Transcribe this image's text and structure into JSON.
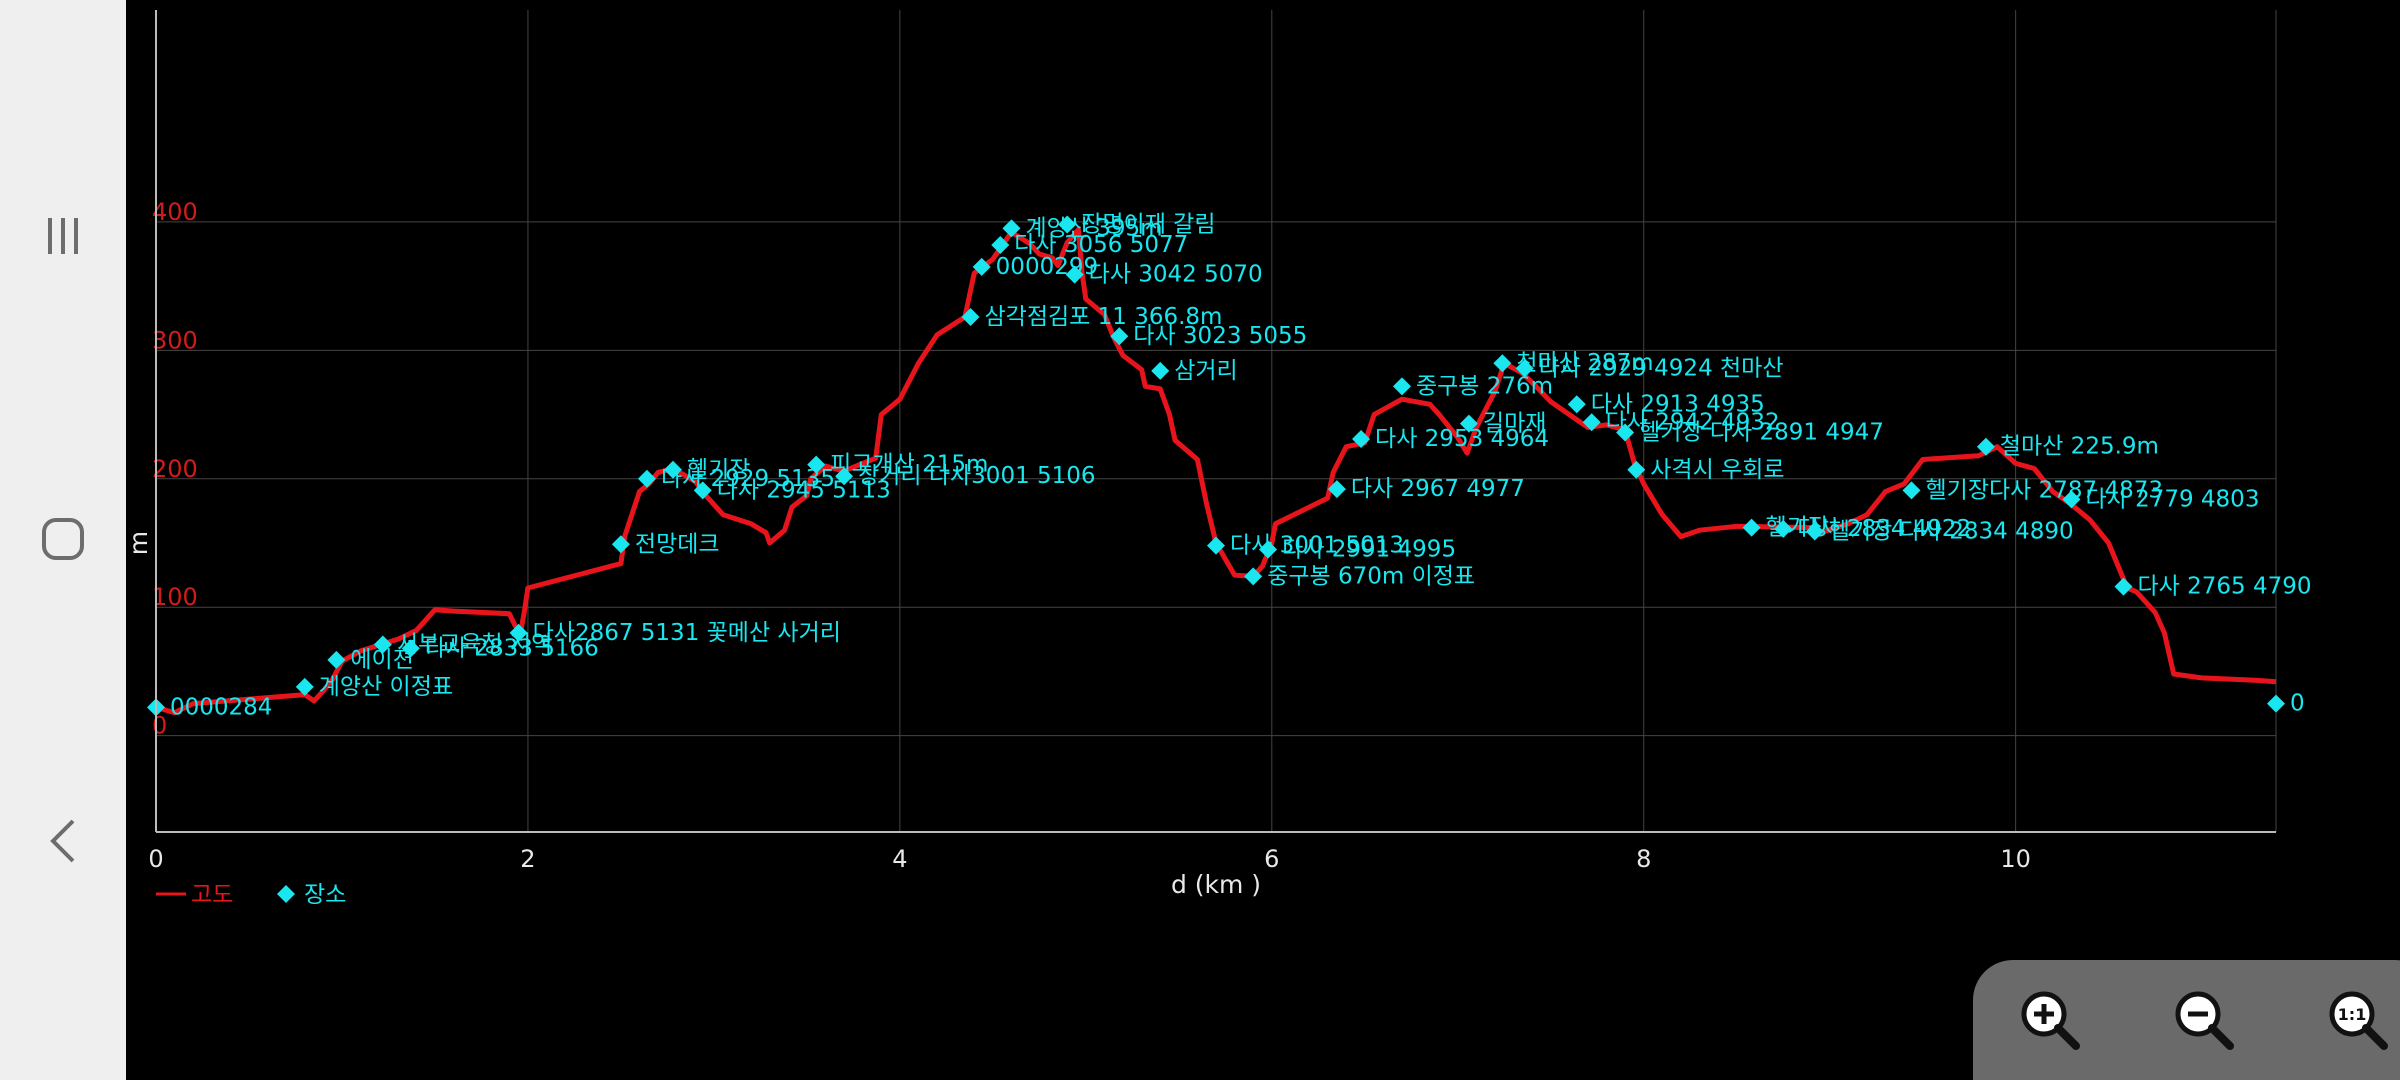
{
  "colors": {
    "elevation_line": "#e8141c",
    "place_marker": "#19e6ef",
    "grid": "#444444",
    "axis_label": "#e8e8e8",
    "y_tick": "#d21c1c",
    "background": "#000000",
    "nav_bg": "#efefef",
    "zoom_panel": "#6a6a6a"
  },
  "nav": {
    "recent_icon": "recent-apps-icon",
    "home_icon": "home-icon",
    "back_icon": "back-icon"
  },
  "zoom": {
    "in_icon": "zoom-in-icon",
    "out_icon": "zoom-out-icon",
    "reset_label": "1:1"
  },
  "legend": {
    "line_label": "고도",
    "marker_label": "장소"
  },
  "chart_data": {
    "type": "line",
    "xlabel": "d (km )",
    "ylabel": "m",
    "xlim": [
      0,
      11.4
    ],
    "ylim": [
      -75,
      565
    ],
    "x_ticks": [
      0,
      2,
      4,
      6,
      8,
      10
    ],
    "y_ticks": [
      0,
      100,
      200,
      300,
      400
    ],
    "grid": true,
    "legend_position": "bottom-left",
    "series": [
      {
        "name": "고도",
        "points": [
          [
            0,
            22
          ],
          [
            0.1,
            18
          ],
          [
            0.2,
            25
          ],
          [
            0.8,
            32
          ],
          [
            0.85,
            27
          ],
          [
            0.9,
            35
          ],
          [
            0.95,
            44
          ],
          [
            1.0,
            58
          ],
          [
            1.1,
            66
          ],
          [
            1.3,
            75
          ],
          [
            1.4,
            82
          ],
          [
            1.5,
            98
          ],
          [
            1.6,
            97
          ],
          [
            1.9,
            95
          ],
          [
            1.93,
            86
          ],
          [
            1.96,
            80
          ],
          [
            1.98,
            96
          ],
          [
            2.0,
            115
          ],
          [
            2.5,
            134
          ],
          [
            2.52,
            155
          ],
          [
            2.6,
            190
          ],
          [
            2.65,
            196
          ],
          [
            2.7,
            205
          ],
          [
            2.78,
            208
          ],
          [
            2.9,
            198
          ],
          [
            2.95,
            188
          ],
          [
            3.05,
            172
          ],
          [
            3.2,
            165
          ],
          [
            3.28,
            158
          ],
          [
            3.3,
            150
          ],
          [
            3.38,
            160
          ],
          [
            3.42,
            178
          ],
          [
            3.5,
            187
          ],
          [
            3.52,
            200
          ],
          [
            3.6,
            210
          ],
          [
            3.7,
            206
          ],
          [
            3.8,
            212
          ],
          [
            3.87,
            216
          ],
          [
            3.9,
            250
          ],
          [
            4.0,
            262
          ],
          [
            4.1,
            290
          ],
          [
            4.2,
            312
          ],
          [
            4.35,
            326
          ],
          [
            4.4,
            360
          ],
          [
            4.5,
            371
          ],
          [
            4.6,
            392
          ],
          [
            4.7,
            383
          ],
          [
            4.75,
            375
          ],
          [
            4.82,
            372
          ],
          [
            4.85,
            366
          ],
          [
            4.9,
            384
          ],
          [
            4.96,
            394
          ],
          [
            4.98,
            360
          ],
          [
            5.0,
            340
          ],
          [
            5.1,
            328
          ],
          [
            5.15,
            310
          ],
          [
            5.2,
            296
          ],
          [
            5.3,
            285
          ],
          [
            5.32,
            272
          ],
          [
            5.4,
            270
          ],
          [
            5.45,
            250
          ],
          [
            5.48,
            230
          ],
          [
            5.6,
            215
          ],
          [
            5.65,
            180
          ],
          [
            5.7,
            150
          ],
          [
            5.8,
            125
          ],
          [
            5.9,
            124
          ],
          [
            5.95,
            132
          ],
          [
            6.0,
            150
          ],
          [
            6.02,
            165
          ],
          [
            6.3,
            185
          ],
          [
            6.33,
            205
          ],
          [
            6.4,
            225
          ],
          [
            6.5,
            228
          ],
          [
            6.55,
            250
          ],
          [
            6.7,
            262
          ],
          [
            6.85,
            258
          ],
          [
            6.9,
            250
          ],
          [
            7.0,
            232
          ],
          [
            7.05,
            220
          ],
          [
            7.1,
            240
          ],
          [
            7.2,
            268
          ],
          [
            7.25,
            290
          ],
          [
            7.35,
            282
          ],
          [
            7.42,
            272
          ],
          [
            7.5,
            260
          ],
          [
            7.6,
            250
          ],
          [
            7.7,
            240
          ],
          [
            7.8,
            242
          ],
          [
            7.9,
            238
          ],
          [
            7.95,
            212
          ],
          [
            8.0,
            196
          ],
          [
            8.1,
            172
          ],
          [
            8.2,
            155
          ],
          [
            8.3,
            160
          ],
          [
            8.5,
            163
          ],
          [
            8.9,
            162
          ],
          [
            8.95,
            158
          ],
          [
            9.1,
            165
          ],
          [
            9.2,
            172
          ],
          [
            9.3,
            190
          ],
          [
            9.4,
            196
          ],
          [
            9.5,
            215
          ],
          [
            9.8,
            218
          ],
          [
            9.9,
            225
          ],
          [
            10.0,
            212
          ],
          [
            10.1,
            208
          ],
          [
            10.2,
            190
          ],
          [
            10.3,
            180
          ],
          [
            10.4,
            168
          ],
          [
            10.5,
            150
          ],
          [
            10.6,
            115
          ],
          [
            10.65,
            112
          ],
          [
            10.7,
            104
          ],
          [
            10.75,
            96
          ],
          [
            10.8,
            80
          ],
          [
            10.85,
            48
          ],
          [
            11.0,
            45
          ],
          [
            11.3,
            43
          ],
          [
            11.4,
            42
          ]
        ]
      }
    ],
    "places": [
      {
        "x": 0.0,
        "y": 22,
        "label": "0000284"
      },
      {
        "x": 0.8,
        "y": 38,
        "label": "계양산 이정표"
      },
      {
        "x": 0.97,
        "y": 59,
        "label": "에이젼"
      },
      {
        "x": 1.22,
        "y": 71,
        "label": "서부교육청 지역"
      },
      {
        "x": 1.37,
        "y": 68,
        "label": "다사 2833 5166"
      },
      {
        "x": 1.95,
        "y": 80,
        "label": "다사2867 5131 꽃메산 사거리"
      },
      {
        "x": 2.5,
        "y": 149,
        "label": "전망데크"
      },
      {
        "x": 2.64,
        "y": 200,
        "label": "다사 2929 5135"
      },
      {
        "x": 2.78,
        "y": 207,
        "label": "헬기장"
      },
      {
        "x": 2.94,
        "y": 191,
        "label": "다사 2945 5113"
      },
      {
        "x": 3.55,
        "y": 211,
        "label": "피고개산 215m"
      },
      {
        "x": 3.7,
        "y": 202,
        "label": "장거리 다사3001 5106"
      },
      {
        "x": 4.38,
        "y": 326,
        "label": "삼각점김포 11 366.8m"
      },
      {
        "x": 4.44,
        "y": 365,
        "label": "0000299"
      },
      {
        "x": 4.54,
        "y": 382,
        "label": "다사 3056 5077"
      },
      {
        "x": 4.6,
        "y": 395,
        "label": "계양산 395m"
      },
      {
        "x": 4.9,
        "y": 398,
        "label": "장명이재 갈림"
      },
      {
        "x": 4.94,
        "y": 359,
        "label": "다사 3042 5070"
      },
      {
        "x": 5.18,
        "y": 311,
        "label": "다사 3023 5055"
      },
      {
        "x": 5.4,
        "y": 284,
        "label": "삼거리"
      },
      {
        "x": 5.7,
        "y": 148,
        "label": "다사 3001 5013"
      },
      {
        "x": 5.9,
        "y": 124,
        "label": "중구봉 670m 이정표"
      },
      {
        "x": 5.98,
        "y": 145,
        "label": "다사 2991 4995"
      },
      {
        "x": 6.35,
        "y": 192,
        "label": "다사 2967 4977"
      },
      {
        "x": 6.48,
        "y": 231,
        "label": "다사 2953 4964"
      },
      {
        "x": 6.7,
        "y": 272,
        "label": "중구봉 276m"
      },
      {
        "x": 7.06,
        "y": 243,
        "label": "길마재"
      },
      {
        "x": 7.24,
        "y": 290,
        "label": "천마산 287m"
      },
      {
        "x": 7.36,
        "y": 286,
        "label": "다사 2929 4924 천마산"
      },
      {
        "x": 7.64,
        "y": 258,
        "label": "다사 2913 4935"
      },
      {
        "x": 7.72,
        "y": 244,
        "label": "다사 2942 4932"
      },
      {
        "x": 7.9,
        "y": 236,
        "label": "헬기장 다사 2891 4947"
      },
      {
        "x": 7.96,
        "y": 207,
        "label": "사격시 우회로"
      },
      {
        "x": 8.58,
        "y": 162,
        "label": "헬기장"
      },
      {
        "x": 8.75,
        "y": 161,
        "label": "다사 2834 4922"
      },
      {
        "x": 8.92,
        "y": 159,
        "label": "헬기장 다사 2834 4890"
      },
      {
        "x": 9.44,
        "y": 191,
        "label": "헬기장다사 2787 4873"
      },
      {
        "x": 9.84,
        "y": 225,
        "label": "철마산 225.9m"
      },
      {
        "x": 10.3,
        "y": 184,
        "label": "다사 2779 4803"
      },
      {
        "x": 10.58,
        "y": 116,
        "label": "다사 2765 4790"
      },
      {
        "x": 11.4,
        "y": 25,
        "label": "0"
      }
    ]
  }
}
